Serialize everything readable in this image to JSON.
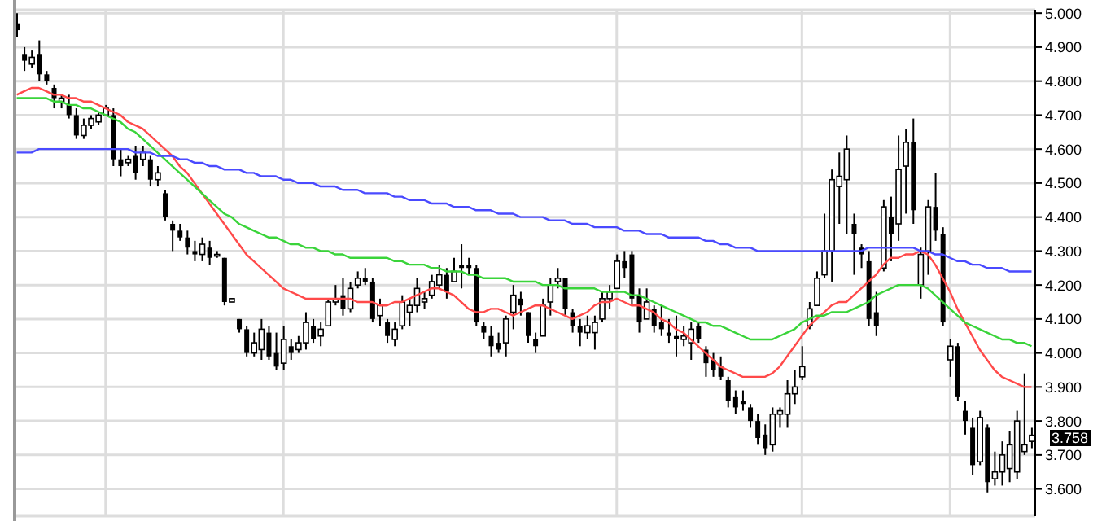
{
  "chart_data": {
    "type": "candlestick",
    "color": "#000000",
    "categories": [
      null,
      null,
      null,
      null,
      null,
      null,
      null,
      null,
      null,
      null,
      null,
      null,
      null,
      null,
      null,
      null,
      null,
      null,
      null,
      null,
      null,
      null,
      null,
      null,
      null,
      null,
      null,
      null,
      null,
      null,
      null,
      null,
      null,
      null,
      null,
      null,
      null,
      null,
      null,
      null,
      null,
      null,
      null,
      null,
      null,
      null,
      null,
      null,
      null,
      null,
      null,
      null,
      null,
      null,
      null,
      null,
      null,
      null,
      null,
      null,
      null,
      null,
      null,
      null,
      null,
      null,
      null,
      null,
      null,
      null,
      null,
      null,
      null,
      null,
      null,
      null,
      null,
      null,
      null,
      null,
      null,
      null,
      null,
      null,
      null,
      null,
      null,
      null,
      null,
      null,
      null,
      null,
      null,
      null,
      null,
      null,
      null,
      null,
      null,
      null,
      null,
      null,
      null,
      null,
      null,
      null,
      null,
      null,
      null,
      null,
      null,
      null,
      null,
      null,
      null,
      null,
      null,
      null,
      null,
      null,
      null,
      null,
      null,
      null,
      null,
      null,
      null,
      null,
      null,
      null,
      null,
      null,
      null,
      null,
      null,
      null,
      null,
      null
    ],
    "ohlc": [
      [
        4.97,
        5.0,
        4.93,
        4.95
      ],
      [
        4.88,
        4.9,
        4.83,
        4.86
      ],
      [
        4.85,
        4.89,
        4.84,
        4.87
      ],
      [
        4.88,
        4.92,
        4.8,
        4.82
      ],
      [
        4.82,
        4.83,
        4.79,
        4.8
      ],
      [
        4.78,
        4.79,
        4.72,
        4.75
      ],
      [
        4.74,
        4.76,
        4.72,
        4.75
      ],
      [
        4.73,
        4.76,
        4.69,
        4.7
      ],
      [
        4.7,
        4.72,
        4.63,
        4.64
      ],
      [
        4.64,
        4.69,
        4.63,
        4.67
      ],
      [
        4.67,
        4.7,
        4.66,
        4.69
      ],
      [
        4.68,
        4.71,
        4.67,
        4.7
      ],
      [
        4.7,
        4.73,
        4.7,
        4.72
      ],
      [
        4.7,
        4.72,
        4.55,
        4.57
      ],
      [
        4.57,
        4.6,
        4.52,
        4.55
      ],
      [
        4.56,
        4.58,
        4.55,
        4.57
      ],
      [
        4.58,
        4.61,
        4.51,
        4.53
      ],
      [
        4.57,
        4.61,
        4.55,
        4.59
      ],
      [
        4.57,
        4.58,
        4.49,
        4.51
      ],
      [
        4.51,
        4.55,
        4.49,
        4.53
      ],
      [
        4.47,
        4.48,
        4.39,
        4.4
      ],
      [
        4.38,
        4.39,
        4.3,
        4.36
      ],
      [
        4.36,
        4.38,
        4.33,
        4.34
      ],
      [
        4.34,
        4.36,
        4.29,
        4.31
      ],
      [
        4.3,
        4.33,
        4.27,
        4.29
      ],
      [
        4.29,
        4.34,
        4.27,
        4.32
      ],
      [
        4.31,
        4.33,
        4.26,
        4.28
      ],
      [
        4.29,
        4.3,
        4.28,
        4.29
      ],
      [
        4.28,
        4.28,
        4.14,
        4.15
      ],
      [
        4.15,
        4.16,
        4.15,
        4.16
      ],
      [
        4.1,
        4.1,
        4.06,
        4.07
      ],
      [
        4.07,
        4.08,
        3.99,
        4.0
      ],
      [
        4.0,
        4.06,
        3.99,
        4.03
      ],
      [
        4.01,
        4.1,
        3.98,
        4.07
      ],
      [
        4.06,
        4.08,
        3.98,
        3.99
      ],
      [
        4.0,
        4.06,
        3.95,
        3.96
      ],
      [
        3.97,
        4.08,
        3.95,
        4.04
      ],
      [
        4.02,
        4.04,
        3.98,
        4.0
      ],
      [
        4.01,
        4.05,
        4.0,
        4.03
      ],
      [
        4.03,
        4.12,
        4.01,
        4.09
      ],
      [
        4.08,
        4.1,
        4.03,
        4.04
      ],
      [
        4.05,
        4.09,
        4.02,
        4.07
      ],
      [
        4.08,
        4.16,
        4.08,
        4.15
      ],
      [
        4.15,
        4.2,
        4.14,
        4.16
      ],
      [
        4.17,
        4.22,
        4.11,
        4.13
      ],
      [
        4.13,
        4.21,
        4.12,
        4.19
      ],
      [
        4.2,
        4.24,
        4.19,
        4.22
      ],
      [
        4.22,
        4.25,
        4.2,
        4.21
      ],
      [
        4.21,
        4.22,
        4.09,
        4.1
      ],
      [
        4.11,
        4.16,
        4.08,
        4.14
      ],
      [
        4.09,
        4.1,
        4.03,
        4.05
      ],
      [
        4.04,
        4.09,
        4.02,
        4.07
      ],
      [
        4.08,
        4.17,
        4.07,
        4.15
      ],
      [
        4.12,
        4.16,
        4.08,
        4.14
      ],
      [
        4.14,
        4.22,
        4.12,
        4.19
      ],
      [
        4.15,
        4.18,
        4.13,
        4.16
      ],
      [
        4.17,
        4.23,
        4.16,
        4.21
      ],
      [
        4.2,
        4.26,
        4.19,
        4.23
      ],
      [
        4.23,
        4.25,
        4.16,
        4.18
      ],
      [
        4.21,
        4.28,
        4.21,
        4.24
      ],
      [
        4.26,
        4.32,
        4.19,
        4.25
      ],
      [
        4.26,
        4.28,
        4.23,
        4.25
      ],
      [
        4.25,
        4.26,
        4.08,
        4.09
      ],
      [
        4.08,
        4.09,
        4.04,
        4.06
      ],
      [
        4.05,
        4.08,
        3.99,
        4.02
      ],
      [
        4.03,
        4.06,
        4.0,
        4.01
      ],
      [
        4.03,
        4.11,
        3.99,
        4.1
      ],
      [
        4.12,
        4.2,
        4.07,
        4.17
      ],
      [
        4.16,
        4.18,
        4.11,
        4.14
      ],
      [
        4.12,
        4.12,
        4.03,
        4.05
      ],
      [
        4.04,
        4.06,
        4.0,
        4.02
      ],
      [
        4.05,
        4.16,
        4.05,
        4.14
      ],
      [
        4.15,
        4.22,
        4.11,
        4.2
      ],
      [
        4.21,
        4.25,
        4.19,
        4.22
      ],
      [
        4.22,
        4.22,
        4.11,
        4.13
      ],
      [
        4.12,
        4.13,
        4.06,
        4.08
      ],
      [
        4.08,
        4.1,
        4.02,
        4.06
      ],
      [
        4.06,
        4.11,
        4.04,
        4.08
      ],
      [
        4.06,
        4.11,
        4.01,
        4.09
      ],
      [
        4.1,
        4.18,
        4.09,
        4.16
      ],
      [
        4.16,
        4.2,
        4.13,
        4.18
      ],
      [
        4.19,
        4.29,
        4.19,
        4.27
      ],
      [
        4.27,
        4.3,
        4.22,
        4.25
      ],
      [
        4.29,
        4.3,
        4.14,
        4.16
      ],
      [
        4.17,
        4.19,
        4.06,
        4.09
      ],
      [
        4.1,
        4.19,
        4.1,
        4.15
      ],
      [
        4.13,
        4.14,
        4.06,
        4.08
      ],
      [
        4.09,
        4.14,
        4.05,
        4.07
      ],
      [
        4.06,
        4.1,
        4.03,
        4.05
      ],
      [
        4.05,
        4.11,
        3.99,
        4.04
      ],
      [
        4.04,
        4.08,
        4.02,
        4.05
      ],
      [
        4.03,
        4.09,
        3.98,
        4.07
      ],
      [
        4.08,
        4.09,
        4.03,
        4.04
      ],
      [
        4.01,
        4.02,
        3.93,
        3.97
      ],
      [
        3.98,
        4.0,
        3.93,
        3.95
      ],
      [
        3.96,
        3.99,
        3.92,
        3.93
      ],
      [
        3.92,
        3.93,
        3.84,
        3.86
      ],
      [
        3.87,
        3.89,
        3.82,
        3.84
      ],
      [
        3.86,
        3.89,
        3.83,
        3.85
      ],
      [
        3.84,
        3.85,
        3.78,
        3.8
      ],
      [
        3.8,
        3.82,
        3.73,
        3.75
      ],
      [
        3.76,
        3.79,
        3.7,
        3.72
      ],
      [
        3.73,
        3.84,
        3.71,
        3.82
      ],
      [
        3.82,
        3.84,
        3.78,
        3.83
      ],
      [
        3.82,
        3.92,
        3.78,
        3.88
      ],
      [
        3.88,
        3.95,
        3.85,
        3.9
      ],
      [
        3.93,
        4.02,
        3.92,
        3.96
      ],
      [
        4.08,
        4.15,
        4.07,
        4.13
      ],
      [
        4.14,
        4.24,
        4.14,
        4.22
      ],
      [
        4.23,
        4.41,
        4.22,
        4.3
      ],
      [
        4.3,
        4.54,
        4.21,
        4.51
      ],
      [
        4.49,
        4.59,
        4.38,
        4.52
      ],
      [
        4.51,
        4.64,
        4.35,
        4.6
      ],
      [
        4.38,
        4.41,
        4.23,
        4.35
      ],
      [
        4.31,
        4.32,
        4.25,
        4.29
      ],
      [
        4.27,
        4.3,
        4.08,
        4.1
      ],
      [
        4.12,
        4.18,
        4.05,
        4.08
      ],
      [
        4.25,
        4.45,
        4.24,
        4.43
      ],
      [
        4.4,
        4.46,
        4.27,
        4.35
      ],
      [
        4.38,
        4.64,
        4.33,
        4.54
      ],
      [
        4.55,
        4.66,
        4.41,
        4.62
      ],
      [
        4.62,
        4.69,
        4.38,
        4.42
      ],
      [
        4.2,
        4.31,
        4.16,
        4.29
      ],
      [
        4.3,
        4.45,
        4.23,
        4.43
      ],
      [
        4.43,
        4.53,
        4.33,
        4.36
      ],
      [
        4.35,
        4.37,
        4.08,
        4.09
      ],
      [
        3.98,
        4.04,
        3.93,
        4.02
      ],
      [
        4.02,
        4.03,
        3.86,
        3.87
      ],
      [
        3.83,
        3.86,
        3.76,
        3.8
      ],
      [
        3.78,
        3.81,
        3.64,
        3.67
      ],
      [
        3.68,
        3.83,
        3.67,
        3.81
      ],
      [
        3.78,
        3.79,
        3.59,
        3.62
      ],
      [
        3.63,
        3.71,
        3.61,
        3.65
      ],
      [
        3.65,
        3.74,
        3.61,
        3.7
      ],
      [
        3.66,
        3.77,
        3.62,
        3.73
      ],
      [
        3.65,
        3.83,
        3.63,
        3.8
      ],
      [
        3.71,
        3.94,
        3.7,
        3.73
      ],
      [
        3.74,
        3.78,
        3.72,
        3.758
      ]
    ],
    "series": [
      {
        "type": "line",
        "color": "#ff4a4a",
        "values": [
          4.76,
          4.77,
          4.78,
          4.78,
          4.77,
          4.76,
          4.76,
          4.75,
          4.75,
          4.74,
          4.74,
          4.73,
          4.72,
          4.71,
          4.7,
          4.68,
          4.67,
          4.66,
          4.64,
          4.62,
          4.6,
          4.58,
          4.55,
          4.53,
          4.5,
          4.47,
          4.44,
          4.41,
          4.38,
          4.35,
          4.32,
          4.29,
          4.27,
          4.25,
          4.23,
          4.21,
          4.19,
          4.18,
          4.17,
          4.16,
          4.16,
          4.16,
          4.16,
          4.16,
          4.16,
          4.16,
          4.15,
          4.15,
          4.15,
          4.14,
          4.14,
          4.15,
          4.15,
          4.16,
          4.17,
          4.18,
          4.19,
          4.19,
          4.18,
          4.17,
          4.15,
          4.13,
          4.12,
          4.12,
          4.13,
          4.13,
          4.12,
          4.11,
          4.12,
          4.13,
          4.14,
          4.14,
          4.13,
          4.12,
          4.11,
          4.1,
          4.11,
          4.12,
          4.14,
          4.15,
          4.15,
          4.16,
          4.15,
          4.14,
          4.14,
          4.13,
          4.12,
          4.1,
          4.09,
          4.07,
          4.06,
          4.04,
          4.02,
          4.0,
          3.98,
          3.96,
          3.95,
          3.94,
          3.93,
          3.93,
          3.93,
          3.93,
          3.94,
          3.96,
          3.99,
          4.02,
          4.05,
          4.08,
          4.1,
          4.12,
          4.14,
          4.15,
          4.15,
          4.17,
          4.19,
          4.21,
          4.23,
          4.26,
          4.28,
          4.28,
          4.29,
          4.29,
          4.3,
          4.29,
          4.26,
          4.22,
          4.18,
          4.13,
          4.09,
          4.05,
          4.01,
          3.98,
          3.95,
          3.93,
          3.92,
          3.91,
          3.9,
          3.9
        ]
      },
      {
        "type": "line",
        "color": "#3ad43a",
        "values": [
          4.75,
          4.75,
          4.75,
          4.75,
          4.75,
          4.74,
          4.74,
          4.73,
          4.73,
          4.72,
          4.72,
          4.71,
          4.7,
          4.69,
          4.68,
          4.66,
          4.65,
          4.63,
          4.61,
          4.59,
          4.57,
          4.55,
          4.53,
          4.51,
          4.49,
          4.47,
          4.45,
          4.43,
          4.41,
          4.4,
          4.38,
          4.37,
          4.36,
          4.35,
          4.34,
          4.34,
          4.33,
          4.32,
          4.32,
          4.31,
          4.31,
          4.3,
          4.3,
          4.29,
          4.29,
          4.28,
          4.28,
          4.28,
          4.28,
          4.28,
          4.28,
          4.27,
          4.27,
          4.26,
          4.26,
          4.26,
          4.25,
          4.25,
          4.24,
          4.24,
          4.24,
          4.23,
          4.23,
          4.22,
          4.22,
          4.22,
          4.22,
          4.21,
          4.21,
          4.21,
          4.21,
          4.2,
          4.2,
          4.2,
          4.19,
          4.19,
          4.19,
          4.19,
          4.19,
          4.18,
          4.18,
          4.18,
          4.18,
          4.17,
          4.17,
          4.16,
          4.15,
          4.14,
          4.13,
          4.12,
          4.11,
          4.1,
          4.09,
          4.09,
          4.08,
          4.08,
          4.07,
          4.06,
          4.05,
          4.04,
          4.04,
          4.04,
          4.04,
          4.05,
          4.06,
          4.07,
          4.09,
          4.1,
          4.11,
          4.11,
          4.12,
          4.12,
          4.12,
          4.13,
          4.14,
          4.15,
          4.17,
          4.18,
          4.19,
          4.2,
          4.2,
          4.2,
          4.2,
          4.19,
          4.17,
          4.15,
          4.13,
          4.11,
          4.09,
          4.08,
          4.07,
          4.06,
          4.05,
          4.04,
          4.04,
          4.03,
          4.03,
          4.02
        ]
      },
      {
        "type": "line",
        "color": "#4a4aff",
        "values": [
          4.59,
          4.59,
          4.59,
          4.6,
          4.6,
          4.6,
          4.6,
          4.6,
          4.6,
          4.6,
          4.6,
          4.6,
          4.6,
          4.6,
          4.6,
          4.6,
          4.59,
          4.59,
          4.59,
          4.58,
          4.58,
          4.58,
          4.57,
          4.57,
          4.56,
          4.56,
          4.55,
          4.55,
          4.54,
          4.54,
          4.54,
          4.53,
          4.53,
          4.52,
          4.52,
          4.52,
          4.51,
          4.51,
          4.5,
          4.5,
          4.5,
          4.49,
          4.49,
          4.49,
          4.48,
          4.48,
          4.48,
          4.47,
          4.47,
          4.47,
          4.47,
          4.46,
          4.46,
          4.45,
          4.45,
          4.45,
          4.44,
          4.44,
          4.44,
          4.43,
          4.43,
          4.43,
          4.42,
          4.42,
          4.42,
          4.41,
          4.41,
          4.41,
          4.4,
          4.4,
          4.4,
          4.4,
          4.39,
          4.39,
          4.39,
          4.38,
          4.38,
          4.38,
          4.37,
          4.37,
          4.37,
          4.37,
          4.36,
          4.36,
          4.36,
          4.35,
          4.35,
          4.35,
          4.34,
          4.34,
          4.34,
          4.34,
          4.34,
          4.33,
          4.33,
          4.32,
          4.32,
          4.31,
          4.31,
          4.31,
          4.3,
          4.3,
          4.3,
          4.3,
          4.3,
          4.3,
          4.3,
          4.3,
          4.3,
          4.3,
          4.3,
          4.3,
          4.3,
          4.3,
          4.3,
          4.31,
          4.31,
          4.31,
          4.31,
          4.31,
          4.31,
          4.31,
          4.3,
          4.3,
          4.29,
          4.29,
          4.28,
          4.27,
          4.27,
          4.26,
          4.26,
          4.25,
          4.25,
          4.25,
          4.24,
          4.24,
          4.24,
          4.24
        ]
      }
    ],
    "ylim": [
      3.52,
      5.01
    ],
    "yticks": [
      {
        "value": 3.6,
        "label": "3.600"
      },
      {
        "value": 3.7,
        "label": "3.700"
      },
      {
        "value": 3.8,
        "label": "3.800"
      },
      {
        "value": 3.9,
        "label": "3.900"
      },
      {
        "value": 4.0,
        "label": "4.000"
      },
      {
        "value": 4.1,
        "label": "4.100"
      },
      {
        "value": 4.2,
        "label": "4.200"
      },
      {
        "value": 4.3,
        "label": "4.300"
      },
      {
        "value": 4.4,
        "label": "4.400"
      },
      {
        "value": 4.5,
        "label": "4.500"
      },
      {
        "value": 4.6,
        "label": "4.600"
      },
      {
        "value": 4.7,
        "label": "4.700"
      },
      {
        "value": 4.8,
        "label": "4.800"
      },
      {
        "value": 4.9,
        "label": "4.900"
      },
      {
        "value": 5.0,
        "label": "5.000"
      }
    ],
    "grid": "y",
    "annotations": [
      "3.758"
    ]
  }
}
